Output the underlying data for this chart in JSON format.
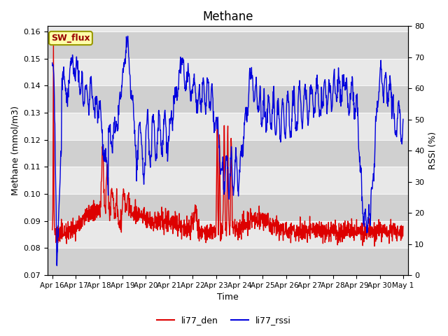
{
  "title": "Methane",
  "xlabel": "Time",
  "ylabel_left": "Methane (mmol/m3)",
  "ylabel_right": "RSSI (%)",
  "ylim_left": [
    0.07,
    0.162
  ],
  "ylim_right": [
    0,
    80
  ],
  "yticks_left": [
    0.07,
    0.08,
    0.09,
    0.1,
    0.11,
    0.12,
    0.13,
    0.14,
    0.15,
    0.16
  ],
  "yticks_right": [
    0,
    10,
    20,
    30,
    40,
    50,
    60,
    70,
    80
  ],
  "xtick_labels": [
    "Apr 16",
    "Apr 17",
    "Apr 18",
    "Apr 19",
    "Apr 20",
    "Apr 21",
    "Apr 22",
    "Apr 23",
    "Apr 24",
    "Apr 25",
    "Apr 26",
    "Apr 27",
    "Apr 28",
    "Apr 29",
    "Apr 30",
    "May 1"
  ],
  "color_den": "#dd0000",
  "color_rssi": "#0000dd",
  "legend_den": "li77_den",
  "legend_rssi": "li77_rssi",
  "bg_outer": "#ffffff",
  "bg_plot_light": "#e8e8e8",
  "bg_plot_dark": "#d0d0d0",
  "annotation_text": "SW_flux",
  "annotation_bg": "#ffffaa",
  "annotation_border": "#888800",
  "linewidth": 1.0
}
